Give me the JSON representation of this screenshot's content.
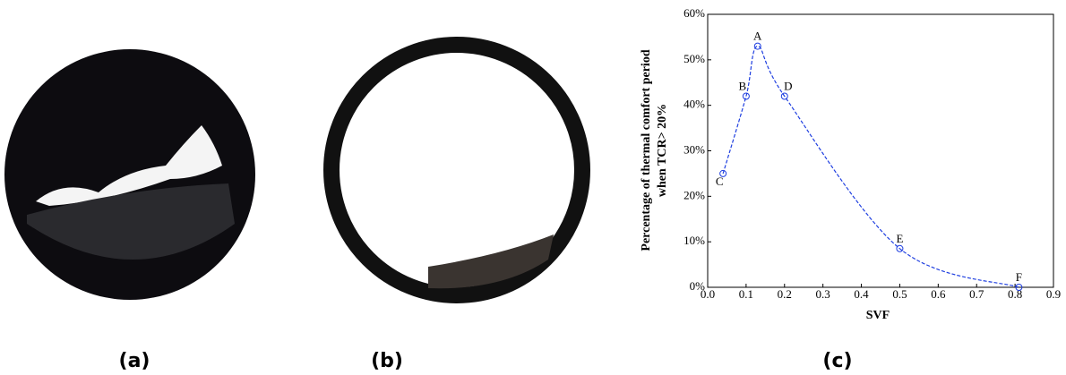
{
  "panel_labels": [
    "(a)",
    "(b)",
    "(c)"
  ],
  "chart_data": {
    "type": "line",
    "xlabel": "SVF",
    "ylabel": [
      "Percentage of thermal comfort period",
      "when TCR> 20%"
    ],
    "x": [
      0.04,
      0.1,
      0.13,
      0.2,
      0.5,
      0.81
    ],
    "point_labels": [
      "C",
      "B",
      "A",
      "D",
      "E",
      "F"
    ],
    "series": [
      {
        "color": "#1f3fe0",
        "values": [
          25,
          42,
          53,
          42,
          8.5,
          0
        ]
      }
    ],
    "xlim": [
      0,
      0.9
    ],
    "xticks": [
      {
        "value": 0,
        "label": "0.0"
      },
      0.1,
      0.2,
      0.3,
      0.4,
      0.5,
      0.6,
      0.7,
      0.8,
      0.9
    ],
    "ylim": [
      0,
      60
    ],
    "yticks": [
      {
        "value": 0,
        "label": "0%"
      },
      {
        "value": 10,
        "label": "10%"
      },
      {
        "value": 20,
        "label": "20%"
      },
      {
        "value": 30,
        "label": "30%"
      },
      {
        "value": 40,
        "label": "40%"
      },
      {
        "value": 50,
        "label": "50%"
      },
      {
        "value": 60,
        "label": "60%"
      }
    ],
    "dashed": true
  }
}
